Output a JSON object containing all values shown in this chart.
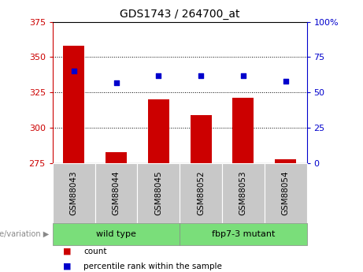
{
  "title": "GDS1743 / 264700_at",
  "categories": [
    "GSM88043",
    "GSM88044",
    "GSM88045",
    "GSM88052",
    "GSM88053",
    "GSM88054"
  ],
  "counts": [
    358,
    283,
    320,
    309,
    321,
    278
  ],
  "percentiles": [
    65,
    57,
    62,
    62,
    62,
    58
  ],
  "ylim_left": [
    275,
    375
  ],
  "ylim_right": [
    0,
    100
  ],
  "yticks_left": [
    275,
    300,
    325,
    350,
    375
  ],
  "yticks_right": [
    0,
    25,
    50,
    75,
    100
  ],
  "bar_color": "#cc0000",
  "dot_color": "#0000cc",
  "bar_width": 0.5,
  "group1_label": "wild type",
  "group2_label": "fbp7-3 mutant",
  "group1_color": "#7ade7a",
  "group2_color": "#7ade7a",
  "genotype_label": "genotype/variation",
  "legend_count_label": "count",
  "legend_percentile_label": "percentile rank within the sample",
  "tick_color_left": "#cc0000",
  "tick_color_right": "#0000cc",
  "grid_ticks": [
    300,
    325,
    350
  ],
  "cat_box_color": "#c8c8c8",
  "title_fontsize": 10,
  "axis_fontsize": 8,
  "label_fontsize": 7.5
}
